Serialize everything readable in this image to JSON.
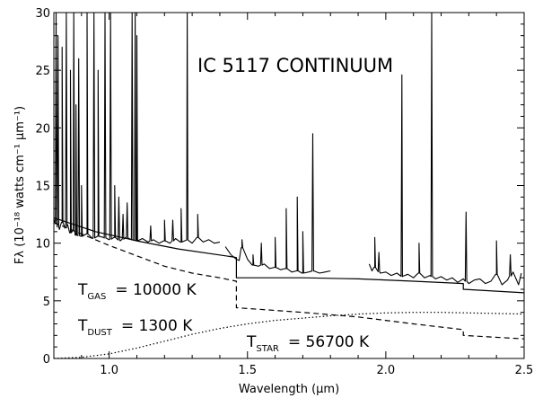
{
  "chart_data": {
    "type": "line",
    "title": "IC 5117 CONTINUUM",
    "xlabel": "Wavelength (μm)",
    "ylabel": "Fλ (10⁻¹⁸ watts cm⁻¹ μm⁻¹)",
    "xlim": [
      0.8,
      2.5
    ],
    "ylim": [
      0,
      30
    ],
    "grid": false,
    "x_ticks": [
      1.0,
      1.5,
      2.0,
      2.5
    ],
    "x_tick_labels": [
      "1.0",
      "1.5",
      "2.0",
      "2.5"
    ],
    "y_ticks": [
      0,
      5,
      10,
      15,
      20,
      25,
      30
    ],
    "y_tick_labels": [
      "0",
      "5",
      "10",
      "15",
      "20",
      "25",
      "30"
    ],
    "annotations": {
      "gas": {
        "main": "T",
        "sub": "GAS",
        "value": "= 10000 K"
      },
      "dust": {
        "main": "T",
        "sub": "DUST",
        "value": "= 1300 K"
      },
      "star": {
        "main": "T",
        "sub": "STAR",
        "value": "= 56700 K"
      }
    },
    "series": [
      {
        "style": "solid",
        "segments": [
          [
            [
              0.8,
              12.0
            ],
            [
              0.82,
              11.2
            ],
            [
              0.83,
              11.8
            ],
            [
              0.84,
              11.3
            ],
            [
              0.85,
              11.6
            ],
            [
              0.86,
              10.9
            ],
            [
              0.87,
              11.2
            ],
            [
              0.88,
              10.7
            ],
            [
              0.9,
              10.6
            ],
            [
              0.92,
              10.8
            ],
            [
              0.94,
              10.4
            ],
            [
              0.96,
              10.6
            ],
            [
              0.98,
              10.5
            ],
            [
              1.0,
              10.3
            ],
            [
              1.02,
              10.5
            ],
            [
              1.04,
              10.2
            ],
            [
              1.06,
              10.5
            ],
            [
              1.08,
              10.3
            ],
            [
              1.1,
              10.2
            ],
            [
              1.12,
              10.4
            ],
            [
              1.14,
              10.1
            ],
            [
              1.16,
              10.3
            ],
            [
              1.18,
              10.0
            ],
            [
              1.2,
              10.2
            ],
            [
              1.22,
              10.0
            ],
            [
              1.24,
              10.4
            ],
            [
              1.26,
              10.1
            ],
            [
              1.28,
              10.3
            ],
            [
              1.3,
              10.0
            ],
            [
              1.32,
              10.5
            ],
            [
              1.34,
              10.1
            ],
            [
              1.36,
              10.3
            ],
            [
              1.38,
              10.0
            ],
            [
              1.4,
              10.1
            ]
          ],
          [
            [
              1.42,
              9.7
            ],
            [
              1.44,
              9.0
            ],
            [
              1.46,
              8.6
            ],
            [
              1.47,
              8.5
            ],
            [
              1.48,
              9.6
            ],
            [
              1.5,
              8.6
            ],
            [
              1.52,
              8.1
            ],
            [
              1.54,
              8.0
            ],
            [
              1.56,
              8.2
            ],
            [
              1.58,
              7.8
            ],
            [
              1.6,
              7.9
            ],
            [
              1.62,
              7.7
            ],
            [
              1.64,
              7.8
            ],
            [
              1.66,
              7.5
            ],
            [
              1.68,
              7.6
            ],
            [
              1.7,
              7.4
            ],
            [
              1.72,
              7.5
            ],
            [
              1.74,
              7.6
            ],
            [
              1.76,
              7.4
            ],
            [
              1.78,
              7.5
            ],
            [
              1.8,
              7.6
            ]
          ],
          [
            [
              1.94,
              8.2
            ],
            [
              1.95,
              7.6
            ],
            [
              1.96,
              7.9
            ],
            [
              1.98,
              7.4
            ],
            [
              2.0,
              7.5
            ],
            [
              2.02,
              7.2
            ],
            [
              2.04,
              7.4
            ],
            [
              2.06,
              7.1
            ],
            [
              2.08,
              7.3
            ],
            [
              2.1,
              7.0
            ],
            [
              2.12,
              7.4
            ],
            [
              2.14,
              7.0
            ],
            [
              2.16,
              7.2
            ],
            [
              2.18,
              6.9
            ],
            [
              2.2,
              7.1
            ],
            [
              2.22,
              6.8
            ],
            [
              2.24,
              7.0
            ],
            [
              2.26,
              6.6
            ],
            [
              2.28,
              6.9
            ],
            [
              2.3,
              6.5
            ],
            [
              2.32,
              6.8
            ],
            [
              2.34,
              6.9
            ],
            [
              2.36,
              6.5
            ],
            [
              2.38,
              6.7
            ],
            [
              2.4,
              7.3
            ],
            [
              2.42,
              6.4
            ],
            [
              2.44,
              6.8
            ],
            [
              2.46,
              7.5
            ],
            [
              2.48,
              6.4
            ],
            [
              2.49,
              7.4
            ]
          ]
        ],
        "peaks": [
          [
            0.808,
            30
          ],
          [
            0.815,
            28
          ],
          [
            0.83,
            27
          ],
          [
            0.845,
            30
          ],
          [
            0.86,
            25
          ],
          [
            0.872,
            30
          ],
          [
            0.88,
            22
          ],
          [
            0.89,
            26
          ],
          [
            0.9,
            15
          ],
          [
            0.92,
            30
          ],
          [
            0.945,
            30
          ],
          [
            0.96,
            25
          ],
          [
            0.985,
            30
          ],
          [
            1.005,
            30
          ],
          [
            1.02,
            15
          ],
          [
            1.035,
            14
          ],
          [
            1.05,
            12.5
          ],
          [
            1.065,
            13.5
          ],
          [
            1.083,
            30
          ],
          [
            1.094,
            30
          ],
          [
            1.1,
            28
          ],
          [
            1.15,
            11.5
          ],
          [
            1.2,
            12
          ],
          [
            1.23,
            12
          ],
          [
            1.26,
            13
          ],
          [
            1.282,
            30
          ],
          [
            1.32,
            12.5
          ],
          [
            1.48,
            10.3
          ],
          [
            1.52,
            9
          ],
          [
            1.55,
            10
          ],
          [
            1.6,
            10.5
          ],
          [
            1.64,
            13
          ],
          [
            1.68,
            14
          ],
          [
            1.7,
            11
          ],
          [
            1.736,
            19.5
          ],
          [
            1.96,
            10.5
          ],
          [
            1.975,
            9.2
          ],
          [
            2.058,
            24.6
          ],
          [
            2.12,
            10
          ],
          [
            2.166,
            30
          ],
          [
            2.29,
            12.7
          ],
          [
            2.4,
            10.2
          ],
          [
            2.45,
            9
          ]
        ]
      },
      {
        "style": "solid",
        "segments": [
          [
            [
              0.8,
              12.2
            ],
            [
              0.95,
              11.0
            ],
            [
              1.1,
              10.2
            ],
            [
              1.25,
              9.5
            ],
            [
              1.45,
              8.8
            ],
            [
              1.46,
              8.75
            ],
            [
              1.46,
              7.0
            ],
            [
              1.7,
              7.0
            ],
            [
              1.9,
              6.9
            ],
            [
              2.1,
              6.7
            ],
            [
              2.28,
              6.5
            ],
            [
              2.28,
              6.0
            ],
            [
              2.5,
              5.7
            ]
          ]
        ],
        "peaks": []
      },
      {
        "style": "dashed",
        "segments": [
          [
            [
              0.8,
              11.8
            ],
            [
              0.9,
              10.8
            ],
            [
              1.0,
              9.8
            ],
            [
              1.1,
              8.9
            ],
            [
              1.2,
              8.0
            ],
            [
              1.3,
              7.4
            ],
            [
              1.4,
              7.0
            ],
            [
              1.46,
              6.7
            ],
            [
              1.46,
              4.4
            ],
            [
              1.7,
              4.0
            ],
            [
              1.9,
              3.6
            ],
            [
              2.1,
              3.0
            ],
            [
              2.28,
              2.5
            ],
            [
              2.28,
              2.0
            ],
            [
              2.5,
              1.7
            ]
          ]
        ],
        "peaks": []
      },
      {
        "style": "dotted",
        "segments": [
          [
            [
              0.8,
              0.0
            ],
            [
              0.9,
              0.1
            ],
            [
              1.0,
              0.4
            ],
            [
              1.1,
              0.9
            ],
            [
              1.2,
              1.5
            ],
            [
              1.3,
              2.1
            ],
            [
              1.4,
              2.6
            ],
            [
              1.5,
              3.0
            ],
            [
              1.6,
              3.3
            ],
            [
              1.7,
              3.5
            ],
            [
              1.8,
              3.7
            ],
            [
              1.9,
              3.85
            ],
            [
              2.0,
              3.95
            ],
            [
              2.1,
              4.0
            ],
            [
              2.2,
              4.0
            ],
            [
              2.3,
              3.95
            ],
            [
              2.4,
              3.9
            ],
            [
              2.5,
              3.85
            ]
          ]
        ],
        "peaks": []
      }
    ]
  }
}
